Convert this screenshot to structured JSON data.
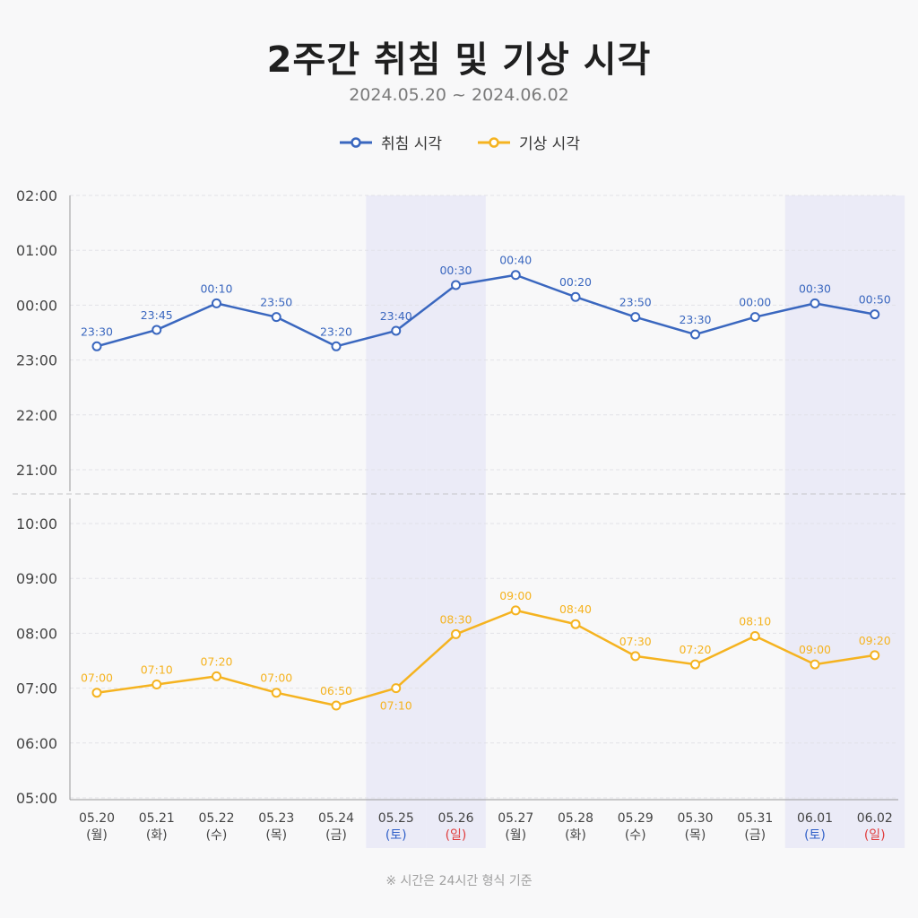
{
  "title": "2주간 취침 및 기상 시각",
  "subtitle": "2024.05.20 ~ 2024.06.02",
  "note": "※ 시간은 24시간 형식 기준",
  "colors": {
    "bed": "#3a67bf",
    "wake": "#f5b320",
    "weekend_band": "#ebebf7",
    "saturday": "#2f5fc8",
    "sunday": "#e03c3c",
    "axis_text": "#444444",
    "grid": "#e2e2e8"
  },
  "chart_data": {
    "type": "line",
    "categories": [
      "05.20",
      "05.21",
      "05.22",
      "05.23",
      "05.24",
      "05.25",
      "05.26",
      "05.27",
      "05.28",
      "05.29",
      "05.30",
      "05.31",
      "06.01",
      "06.02"
    ],
    "weekdays": [
      "(월)",
      "(화)",
      "(수)",
      "(목)",
      "(금)",
      "(토)",
      "(일)",
      "(월)",
      "(화)",
      "(수)",
      "(목)",
      "(금)",
      "(토)",
      "(일)"
    ],
    "weekend_categories": [
      "05.25",
      "05.26",
      "06.01",
      "06.02"
    ],
    "panels": [
      {
        "name": "bed",
        "ylim": [
          "21:00",
          "02:00"
        ],
        "yticks": [
          "02:00",
          "01:00",
          "00:00",
          "23:00",
          "22:00",
          "21:00"
        ],
        "grid": true
      },
      {
        "name": "wake",
        "ylim": [
          "05:00",
          "10:30"
        ],
        "yticks": [
          "10:00",
          "09:00",
          "08:00",
          "07:00",
          "06:00",
          "05:00"
        ],
        "grid": true
      }
    ],
    "series": [
      {
        "name": "취침 시각",
        "panel": "bed",
        "values": [
          "23:30",
          "23:45",
          "00:10",
          "23:50",
          "23:20",
          "23:40",
          "00:30",
          "00:40",
          "00:20",
          "23:50",
          "23:30",
          "00:00",
          "00:30",
          "00:50"
        ],
        "plotted": [
          "23:15",
          "23:33",
          "00:02",
          "23:47",
          "23:15",
          "23:32",
          "00:22",
          "00:33",
          "00:09",
          "23:47",
          "23:28",
          "23:47",
          "00:02",
          "23:50"
        ]
      },
      {
        "name": "기상 시각",
        "panel": "wake",
        "values": [
          "07:00",
          "07:10",
          "07:20",
          "07:00",
          "06:50",
          "07:10",
          "08:30",
          "09:00",
          "08:40",
          "07:30",
          "07:20",
          "08:10",
          "09:00",
          "09:20"
        ],
        "plotted": [
          "06:55",
          "07:04",
          "07:13",
          "06:55",
          "06:41",
          "07:00",
          "07:59",
          "08:25",
          "08:10",
          "07:35",
          "07:26",
          "07:57",
          "07:26",
          "07:36"
        ]
      }
    ],
    "legend": {
      "position": "top-center",
      "entries": [
        "취침 시각",
        "기상 시각"
      ]
    }
  }
}
